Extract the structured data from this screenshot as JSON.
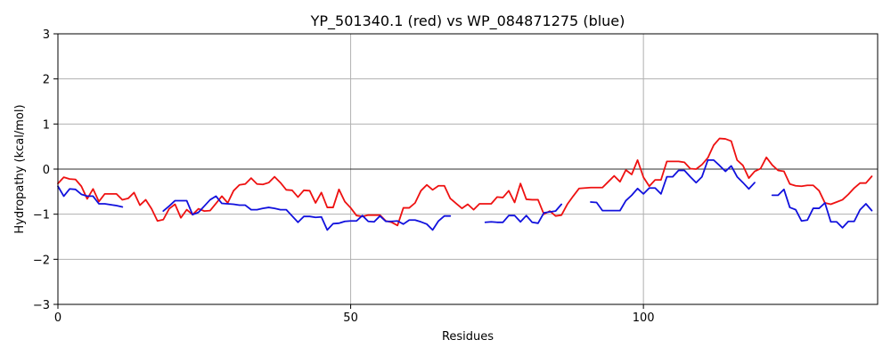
{
  "chart_data": {
    "type": "line",
    "title": "YP_501340.1 (red) vs WP_084871275 (blue)",
    "xlabel": "Residues",
    "ylabel": "Hydropathy (kcal/mol)",
    "xlim": [
      0,
      140
    ],
    "ylim": [
      -3,
      3
    ],
    "xticks": [
      0,
      50,
      100
    ],
    "yticks": [
      -3,
      -2,
      -1,
      0,
      1,
      2,
      3
    ],
    "grid": true,
    "zero_line": true,
    "series": [
      {
        "color": "#ee1111",
        "points": [
          [
            0,
            -0.32
          ],
          [
            1,
            -0.18
          ],
          [
            2,
            -0.22
          ],
          [
            3,
            -0.23
          ],
          [
            4,
            -0.38
          ],
          [
            5,
            -0.66
          ],
          [
            6,
            -0.44
          ],
          [
            7,
            -0.72
          ],
          [
            8,
            -0.55
          ],
          [
            9,
            -0.55
          ],
          [
            10,
            -0.55
          ],
          [
            11,
            -0.68
          ],
          [
            12,
            -0.65
          ],
          [
            13,
            -0.52
          ],
          [
            14,
            -0.8
          ],
          [
            15,
            -0.68
          ],
          [
            16,
            -0.88
          ],
          [
            17,
            -1.15
          ],
          [
            18,
            -1.12
          ],
          [
            19,
            -0.88
          ],
          [
            20,
            -0.78
          ],
          [
            21,
            -1.08
          ],
          [
            22,
            -0.9
          ],
          [
            23,
            -1.01
          ],
          [
            24,
            -0.88
          ],
          [
            25,
            -0.93
          ],
          [
            26,
            -0.92
          ],
          [
            27,
            -0.76
          ],
          [
            28,
            -0.6
          ],
          [
            29,
            -0.75
          ],
          [
            30,
            -0.48
          ],
          [
            31,
            -0.35
          ],
          [
            32,
            -0.33
          ],
          [
            33,
            -0.2
          ],
          [
            34,
            -0.33
          ],
          [
            35,
            -0.34
          ],
          [
            36,
            -0.3
          ],
          [
            37,
            -0.17
          ],
          [
            38,
            -0.3
          ],
          [
            39,
            -0.46
          ],
          [
            40,
            -0.47
          ],
          [
            41,
            -0.62
          ],
          [
            42,
            -0.47
          ],
          [
            43,
            -0.48
          ],
          [
            44,
            -0.75
          ],
          [
            45,
            -0.52
          ],
          [
            46,
            -0.85
          ],
          [
            47,
            -0.85
          ],
          [
            48,
            -0.45
          ],
          [
            49,
            -0.72
          ],
          [
            50,
            -0.86
          ],
          [
            51,
            -1.03
          ],
          [
            52,
            -1.05
          ],
          [
            53,
            -1.02
          ],
          [
            54,
            -1.02
          ],
          [
            55,
            -1.02
          ],
          [
            56,
            -1.15
          ],
          [
            57,
            -1.18
          ],
          [
            58,
            -1.25
          ],
          [
            59,
            -0.86
          ],
          [
            60,
            -0.86
          ],
          [
            61,
            -0.75
          ],
          [
            62,
            -0.48
          ],
          [
            63,
            -0.35
          ],
          [
            64,
            -0.46
          ],
          [
            65,
            -0.37
          ],
          [
            66,
            -0.37
          ],
          [
            67,
            -0.65
          ],
          [
            68,
            -0.76
          ],
          [
            69,
            -0.87
          ],
          [
            70,
            -0.78
          ],
          [
            71,
            -0.9
          ],
          [
            72,
            -0.77
          ],
          [
            73,
            -0.77
          ],
          [
            74,
            -0.77
          ],
          [
            75,
            -0.62
          ],
          [
            76,
            -0.63
          ],
          [
            77,
            -0.48
          ],
          [
            78,
            -0.74
          ],
          [
            79,
            -0.32
          ],
          [
            80,
            -0.67
          ],
          [
            81,
            -0.68
          ],
          [
            82,
            -0.68
          ],
          [
            83,
            -1.0
          ],
          [
            84,
            -0.93
          ],
          [
            85,
            -1.04
          ],
          [
            86,
            -1.02
          ],
          [
            87,
            -0.78
          ],
          [
            88,
            -0.6
          ],
          [
            89,
            -0.43
          ],
          [
            90,
            -0.42
          ],
          [
            91,
            -0.41
          ],
          [
            92,
            -0.41
          ],
          [
            93,
            -0.41
          ],
          [
            94,
            -0.28
          ],
          [
            95,
            -0.15
          ],
          [
            96,
            -0.28
          ],
          [
            97,
            -0.02
          ],
          [
            98,
            -0.12
          ],
          [
            99,
            0.2
          ],
          [
            100,
            -0.18
          ],
          [
            101,
            -0.38
          ],
          [
            102,
            -0.24
          ],
          [
            103,
            -0.24
          ],
          [
            104,
            0.17
          ],
          [
            105,
            0.17
          ],
          [
            106,
            0.17
          ],
          [
            107,
            0.15
          ],
          [
            108,
            0.01
          ],
          [
            109,
            0.0
          ],
          [
            110,
            0.1
          ],
          [
            111,
            0.25
          ],
          [
            112,
            0.53
          ],
          [
            113,
            0.68
          ],
          [
            114,
            0.67
          ],
          [
            115,
            0.62
          ],
          [
            116,
            0.2
          ],
          [
            117,
            0.08
          ],
          [
            118,
            -0.2
          ],
          [
            119,
            -0.05
          ],
          [
            120,
            0.01
          ],
          [
            121,
            0.26
          ],
          [
            122,
            0.09
          ],
          [
            123,
            -0.03
          ],
          [
            124,
            -0.05
          ],
          [
            125,
            -0.33
          ],
          [
            126,
            -0.37
          ],
          [
            127,
            -0.38
          ],
          [
            128,
            -0.36
          ],
          [
            129,
            -0.36
          ],
          [
            130,
            -0.48
          ],
          [
            131,
            -0.75
          ],
          [
            132,
            -0.78
          ],
          [
            133,
            -0.73
          ],
          [
            134,
            -0.68
          ],
          [
            135,
            -0.56
          ],
          [
            136,
            -0.42
          ],
          [
            137,
            -0.31
          ],
          [
            138,
            -0.31
          ],
          [
            139,
            -0.16
          ]
        ]
      },
      {
        "color": "#1111dd",
        "points": [
          [
            0,
            -0.38
          ],
          [
            1,
            -0.6
          ],
          [
            2,
            -0.44
          ],
          [
            3,
            -0.45
          ],
          [
            4,
            -0.56
          ],
          [
            5,
            -0.6
          ],
          [
            6,
            -0.6
          ],
          [
            7,
            -0.77
          ],
          [
            8,
            -0.77
          ],
          [
            9,
            -0.79
          ],
          [
            10,
            -0.81
          ],
          [
            11,
            -0.84
          ],
          [
            12,
            null
          ],
          [
            13,
            null
          ],
          [
            14,
            null
          ],
          [
            15,
            null
          ],
          [
            16,
            null
          ],
          [
            17,
            null
          ],
          [
            18,
            -0.93
          ],
          [
            19,
            -0.82
          ],
          [
            20,
            -0.7
          ],
          [
            21,
            -0.7
          ],
          [
            22,
            -0.7
          ],
          [
            23,
            -1.01
          ],
          [
            24,
            -0.96
          ],
          [
            25,
            -0.82
          ],
          [
            26,
            -0.68
          ],
          [
            27,
            -0.6
          ],
          [
            28,
            -0.76
          ],
          [
            29,
            -0.77
          ],
          [
            30,
            -0.78
          ],
          [
            31,
            -0.8
          ],
          [
            32,
            -0.8
          ],
          [
            33,
            -0.9
          ],
          [
            34,
            -0.9
          ],
          [
            35,
            -0.87
          ],
          [
            36,
            -0.85
          ],
          [
            37,
            -0.87
          ],
          [
            38,
            -0.9
          ],
          [
            39,
            -0.9
          ],
          [
            40,
            -1.04
          ],
          [
            41,
            -1.18
          ],
          [
            42,
            -1.05
          ],
          [
            43,
            -1.05
          ],
          [
            44,
            -1.07
          ],
          [
            45,
            -1.06
          ],
          [
            46,
            -1.35
          ],
          [
            47,
            -1.21
          ],
          [
            48,
            -1.2
          ],
          [
            49,
            -1.16
          ],
          [
            50,
            -1.15
          ],
          [
            51,
            -1.15
          ],
          [
            52,
            -1.03
          ],
          [
            53,
            -1.16
          ],
          [
            54,
            -1.17
          ],
          [
            55,
            -1.04
          ],
          [
            56,
            -1.16
          ],
          [
            57,
            -1.16
          ],
          [
            58,
            -1.15
          ],
          [
            59,
            -1.22
          ],
          [
            60,
            -1.13
          ],
          [
            61,
            -1.13
          ],
          [
            62,
            -1.17
          ],
          [
            63,
            -1.22
          ],
          [
            64,
            -1.35
          ],
          [
            65,
            -1.15
          ],
          [
            66,
            -1.04
          ],
          [
            67,
            -1.04
          ],
          [
            68,
            null
          ],
          [
            69,
            null
          ],
          [
            70,
            null
          ],
          [
            71,
            null
          ],
          [
            72,
            null
          ],
          [
            73,
            -1.18
          ],
          [
            74,
            -1.17
          ],
          [
            75,
            -1.18
          ],
          [
            76,
            -1.18
          ],
          [
            77,
            -1.03
          ],
          [
            78,
            -1.03
          ],
          [
            79,
            -1.17
          ],
          [
            80,
            -1.03
          ],
          [
            81,
            -1.18
          ],
          [
            82,
            -1.2
          ],
          [
            83,
            -0.97
          ],
          [
            84,
            -0.95
          ],
          [
            85,
            -0.93
          ],
          [
            86,
            -0.78
          ],
          [
            87,
            null
          ],
          [
            88,
            null
          ],
          [
            89,
            null
          ],
          [
            90,
            null
          ],
          [
            91,
            -0.73
          ],
          [
            92,
            -0.74
          ],
          [
            93,
            -0.92
          ],
          [
            94,
            -0.92
          ],
          [
            95,
            -0.92
          ],
          [
            96,
            -0.92
          ],
          [
            97,
            -0.7
          ],
          [
            98,
            -0.58
          ],
          [
            99,
            -0.43
          ],
          [
            100,
            -0.55
          ],
          [
            101,
            -0.42
          ],
          [
            102,
            -0.42
          ],
          [
            103,
            -0.55
          ],
          [
            104,
            -0.17
          ],
          [
            105,
            -0.17
          ],
          [
            106,
            -0.03
          ],
          [
            107,
            -0.03
          ],
          [
            108,
            -0.17
          ],
          [
            109,
            -0.3
          ],
          [
            110,
            -0.17
          ],
          [
            111,
            0.2
          ],
          [
            112,
            0.2
          ],
          [
            113,
            0.08
          ],
          [
            114,
            -0.05
          ],
          [
            115,
            0.07
          ],
          [
            116,
            -0.17
          ],
          [
            117,
            -0.3
          ],
          [
            118,
            -0.44
          ],
          [
            119,
            -0.3
          ],
          [
            120,
            null
          ],
          [
            121,
            null
          ],
          [
            122,
            -0.58
          ],
          [
            123,
            -0.58
          ],
          [
            124,
            -0.45
          ],
          [
            125,
            -0.85
          ],
          [
            126,
            -0.9
          ],
          [
            127,
            -1.15
          ],
          [
            128,
            -1.13
          ],
          [
            129,
            -0.87
          ],
          [
            130,
            -0.87
          ],
          [
            131,
            -0.75
          ],
          [
            132,
            -1.17
          ],
          [
            133,
            -1.17
          ],
          [
            134,
            -1.3
          ],
          [
            135,
            -1.16
          ],
          [
            136,
            -1.16
          ],
          [
            137,
            -0.9
          ],
          [
            138,
            -0.77
          ],
          [
            139,
            -0.92
          ]
        ]
      }
    ]
  }
}
